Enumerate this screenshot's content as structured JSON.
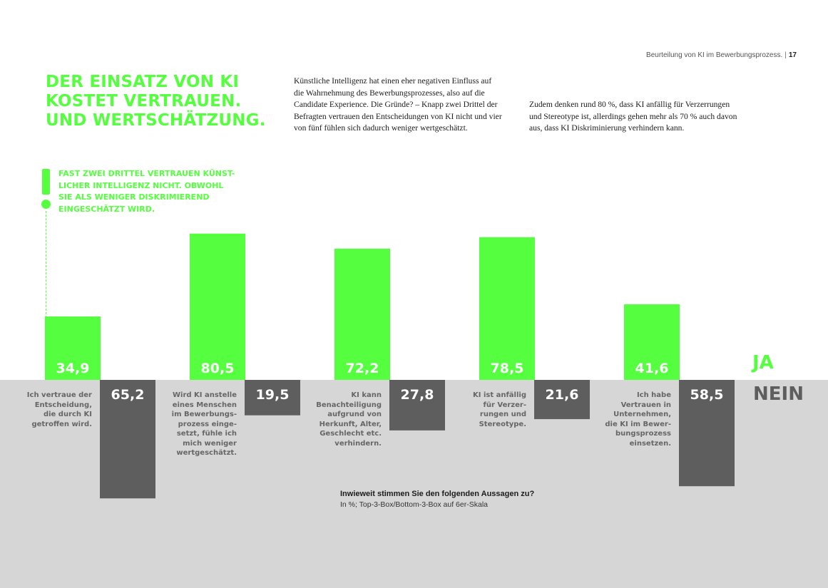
{
  "running_head": {
    "section": "Beurteilung von KI im Bewerbungsprozess.",
    "separator": "|",
    "page_number": "17"
  },
  "headline": {
    "lines": [
      "DER EINSATZ VON KI",
      "KOSTET VERTRAUEN.",
      "UND WERTSCHÄTZUNG."
    ]
  },
  "intro": {
    "paragraph_1": [
      "Künstliche Intelligenz hat einen eher negativen Einfluss auf",
      "die Wahrnehmung des Bewerbungsprozesses, also auf die",
      "Candidate Experience. Die Gründe? – Knapp zwei Drittel der",
      "Befragten vertrauen den Entscheidungen von KI nicht und vier",
      "von fünf fühlen sich dadurch weniger wertgeschätzt."
    ],
    "paragraph_2": [
      "Zudem denken rund 80 %, dass KI anfällig für Verzerrungen",
      "und Stereotype ist, allerdings gehen mehr als 70 % auch davon",
      "aus, dass KI Diskriminierung verhindern kann."
    ]
  },
  "callout": {
    "icon": "exclamation-icon",
    "lines": [
      "FAST ZWEI DRITTEL VERTRAUEN KÜNST-",
      "LICHER INTELLIGENZ NICHT. OBWOHL",
      "SIE ALS WENIGER DISKRIMIEREND",
      "EINGESCHÄTZT WIRD."
    ]
  },
  "colors": {
    "ja": "#55ff3f",
    "nein": "#5e5e5e",
    "lower_background": "#d6d6d6"
  },
  "chart_data": {
    "type": "bar",
    "orientation": "diverging-vertical",
    "legend": [
      "JA",
      "NEIN"
    ],
    "legend_position": "right",
    "grid": false,
    "categories": [
      {
        "label_lines": [
          "Ich vertraue der",
          "Entscheidung,",
          "die durch KI",
          "getroffen wird."
        ],
        "ja": 34.9,
        "ja_label": "34,9",
        "nein": 65.2,
        "nein_label": "65,2"
      },
      {
        "label_lines": [
          "Wird KI anstelle",
          "eines Menschen",
          "im Bewerbungs-",
          "prozess einge-",
          "setzt, fühle ich",
          "mich weniger",
          "wertgeschätzt."
        ],
        "ja": 80.5,
        "ja_label": "80,5",
        "nein": 19.5,
        "nein_label": "19,5"
      },
      {
        "label_lines": [
          "KI kann",
          "Benachteiligung",
          "aufgrund von",
          "Herkunft, Alter,",
          "Geschlecht etc.",
          "verhindern."
        ],
        "ja": 72.2,
        "ja_label": "72,2",
        "nein": 27.8,
        "nein_label": "27,8"
      },
      {
        "label_lines": [
          "KI ist anfällig",
          "für Verzer-",
          "rungen und",
          "Stereotype."
        ],
        "ja": 78.5,
        "ja_label": "78,5",
        "nein": 21.6,
        "nein_label": "21,6"
      },
      {
        "label_lines": [
          "Ich habe",
          "Vertrauen in",
          "Unternehmen,",
          "die KI im Bewer-",
          "bungsprozess",
          "einsetzen."
        ],
        "ja": 41.6,
        "ja_label": "41,6",
        "nein": 58.5,
        "nein_label": "58,5"
      }
    ],
    "question": "Inwieweit stimmen Sie den folgenden Aussagen zu?",
    "scale_note": "In %; Top-3-Box/Bottom-3-Box auf 6er-Skala"
  }
}
